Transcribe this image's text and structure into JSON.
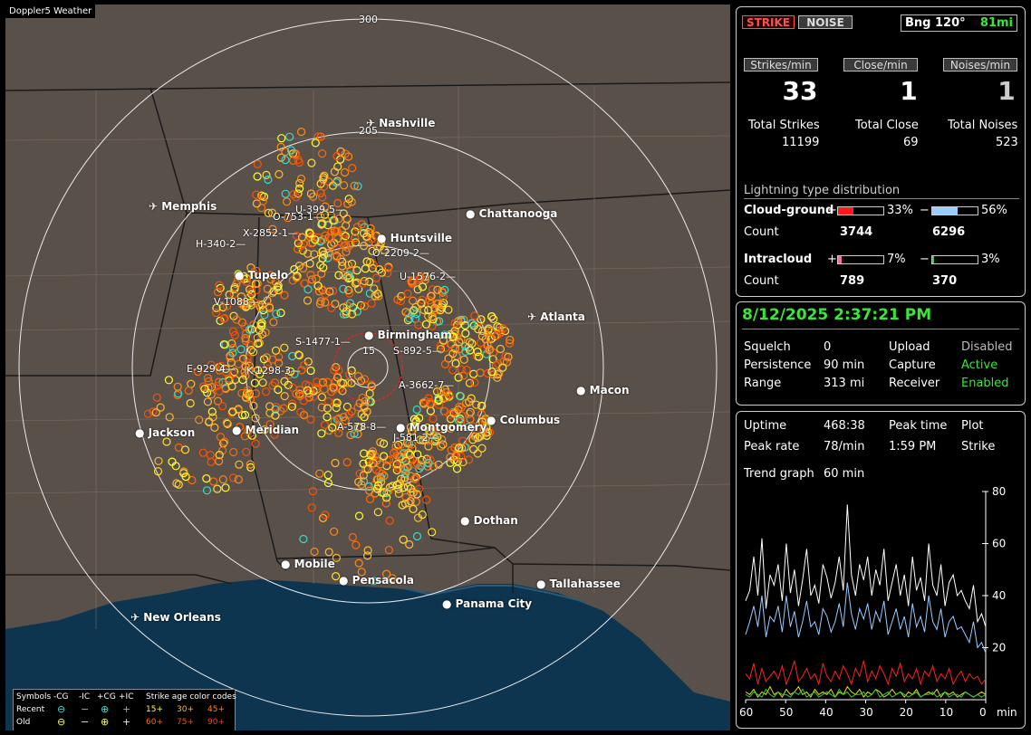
{
  "app": {
    "title": "Doppler5 Weather"
  },
  "map": {
    "range_labels": [
      "300",
      "205",
      "15"
    ],
    "cities": [
      {
        "name": "Nashville",
        "airport": true
      },
      {
        "name": "Memphis",
        "airport": true
      },
      {
        "name": "Chattanooga",
        "airport": false
      },
      {
        "name": "Huntsville",
        "airport": false
      },
      {
        "name": "Tupelo",
        "airport": false
      },
      {
        "name": "Atlanta",
        "airport": true
      },
      {
        "name": "Birmingham",
        "airport": false
      },
      {
        "name": "Macon",
        "airport": false
      },
      {
        "name": "Jackson",
        "airport": false
      },
      {
        "name": "Meridian",
        "airport": false
      },
      {
        "name": "Montgomery",
        "airport": false
      },
      {
        "name": "Columbus",
        "airport": false
      },
      {
        "name": "Dothan",
        "airport": false
      },
      {
        "name": "Mobile",
        "airport": false
      },
      {
        "name": "Pensacola",
        "airport": false
      },
      {
        "name": "Tallahassee",
        "airport": false
      },
      {
        "name": "Panama City",
        "airport": false
      },
      {
        "name": "New Orleans",
        "airport": true
      }
    ],
    "storm_ids": [
      "U-399-5",
      "O-753-1",
      "X-2852-1",
      "H-340-2",
      "O-2209-2",
      "U-1576-2",
      "V-1088",
      "S-1477-1",
      "S-892-5",
      "E-929-4",
      "K-1298-3",
      "A-3662-7",
      "A-578-8",
      "J-581-2"
    ]
  },
  "legend": {
    "symbols_label": "Symbols",
    "cols": [
      "-CG",
      "-IC",
      "+CG",
      "+IC"
    ],
    "age_label": "Strike age color codes",
    "recent_label": "Recent",
    "old_label": "Old",
    "recent_ages": [
      "15+",
      "30+",
      "45+"
    ],
    "old_ages": [
      "60+",
      "75+",
      "90+"
    ],
    "recent_age_colors": [
      "#ffff33",
      "#ffb833",
      "#ff8a1a"
    ],
    "old_age_colors": [
      "#ff6a00",
      "#ff5000",
      "#ff3a1a"
    ]
  },
  "panel1": {
    "strike_btn": "STRIKE",
    "noise_btn": "NOISE",
    "bearing": "Bng 120°",
    "bearing_dist": "81mi",
    "strikes_min_label": "Strikes/min",
    "close_min_label": "Close/min",
    "noises_min_label": "Noises/min",
    "strikes_min": "33",
    "close_min": "1",
    "noises_min": "1",
    "total_strikes_label": "Total Strikes",
    "total_close_label": "Total Close",
    "total_noises_label": "Total Noises",
    "total_strikes": "11199",
    "total_close": "69",
    "total_noises": "523",
    "dist_title": "Lightning type distribution",
    "cg_label": "Cloud-ground",
    "ic_label": "Intracloud",
    "count_label": "Count",
    "plus": "+",
    "minus": "−",
    "cg_pos_pct": "33%",
    "cg_neg_pct": "56%",
    "ic_pos_pct": "7%",
    "ic_neg_pct": "3%",
    "cg_pos_frac": 0.33,
    "cg_neg_frac": 0.56,
    "ic_pos_frac": 0.07,
    "ic_neg_frac": 0.03,
    "cg_pos_count": "3744",
    "cg_neg_count": "6296",
    "ic_pos_count": "789",
    "ic_neg_count": "370",
    "colors": {
      "cg_pos": "#ff1a1a",
      "cg_neg": "#99ccff",
      "ic_pos": "#ff66aa",
      "ic_neg": "#33cc33"
    }
  },
  "panel2": {
    "datetime": "8/12/2025 2:37:21 PM",
    "squelch_label": "Squelch",
    "squelch": "0",
    "persistence_label": "Persistence",
    "persistence": "90 min",
    "range_label": "Range",
    "range": "313 mi",
    "upload_label": "Upload",
    "upload": "Disabled",
    "capture_label": "Capture",
    "capture": "Active",
    "receiver_label": "Receiver",
    "receiver": "Enabled"
  },
  "panel3": {
    "uptime_label": "Uptime",
    "uptime": "468:38",
    "peak_time_label": "Peak time",
    "peak_time": "1:59 PM",
    "plot_label": "Plot",
    "plot": "Strike",
    "peak_rate_label": "Peak rate",
    "peak_rate": "78/min",
    "trend_label": "Trend graph",
    "trend": "60 min"
  },
  "chart_data": {
    "type": "line",
    "x_label": "min",
    "x_ticks": [
      "60",
      "50",
      "40",
      "30",
      "20",
      "10",
      "0"
    ],
    "y_ticks": [
      "80",
      "60",
      "40",
      "20"
    ],
    "xlim": [
      60,
      0
    ],
    "ylim": [
      0,
      80
    ],
    "series": [
      {
        "color": "#ffffff",
        "values": [
          38,
          42,
          55,
          40,
          62,
          35,
          48,
          44,
          52,
          38,
          60,
          41,
          50,
          36,
          46,
          58,
          40,
          44,
          37,
          52,
          47,
          39,
          45,
          55,
          42,
          75,
          48,
          40,
          52,
          46,
          55,
          40,
          50,
          44,
          58,
          38,
          45,
          52,
          40,
          48,
          36,
          55,
          42,
          47,
          38,
          60,
          44,
          40,
          52,
          36,
          45,
          48,
          40,
          42,
          38,
          35,
          44,
          30,
          33,
          28
        ]
      },
      {
        "color": "#99ccff",
        "values": [
          25,
          30,
          36,
          28,
          40,
          24,
          32,
          30,
          36,
          26,
          40,
          28,
          34,
          24,
          30,
          38,
          28,
          30,
          25,
          35,
          32,
          26,
          30,
          37,
          28,
          45,
          33,
          27,
          35,
          31,
          37,
          27,
          34,
          30,
          38,
          25,
          30,
          35,
          27,
          32,
          24,
          37,
          28,
          32,
          26,
          40,
          30,
          27,
          35,
          24,
          30,
          32,
          27,
          28,
          25,
          22,
          30,
          20,
          22,
          18
        ]
      },
      {
        "color": "#ff2020",
        "values": [
          10,
          8,
          14,
          6,
          12,
          7,
          9,
          11,
          8,
          13,
          6,
          10,
          15,
          7,
          9,
          12,
          8,
          10,
          6,
          14,
          9,
          7,
          11,
          8,
          13,
          10,
          6,
          12,
          9,
          15,
          7,
          11,
          8,
          13,
          10,
          6,
          12,
          9,
          14,
          7,
          10,
          8,
          12,
          6,
          11,
          9,
          13,
          7,
          10,
          8,
          12,
          6,
          9,
          11,
          7,
          10,
          8,
          9,
          6,
          8
        ]
      },
      {
        "color": "#e0e000",
        "values": [
          3,
          2,
          4,
          1,
          3,
          2,
          5,
          2,
          3,
          1,
          4,
          2,
          3,
          5,
          2,
          3,
          1,
          4,
          2,
          3,
          2,
          4,
          1,
          3,
          2,
          5,
          3,
          2,
          4,
          1,
          3,
          2,
          4,
          3,
          1,
          2,
          4,
          2,
          3,
          1,
          3,
          2,
          4,
          1,
          2,
          3,
          2,
          4,
          1,
          3,
          2,
          3,
          1,
          2,
          3,
          2,
          1,
          2,
          3,
          2
        ]
      },
      {
        "color": "#33cc33",
        "values": [
          2,
          1,
          3,
          2,
          1,
          4,
          2,
          1,
          3,
          2,
          2,
          1,
          3,
          2,
          4,
          1,
          2,
          3,
          1,
          2,
          3,
          2,
          1,
          4,
          2,
          3,
          1,
          2,
          2,
          3,
          1,
          2,
          4,
          1,
          2,
          3,
          1,
          2,
          3,
          2,
          1,
          2,
          3,
          1,
          2,
          2,
          3,
          1,
          2,
          3,
          1,
          2,
          2,
          1,
          3,
          2,
          1,
          2,
          1,
          2
        ]
      }
    ]
  }
}
